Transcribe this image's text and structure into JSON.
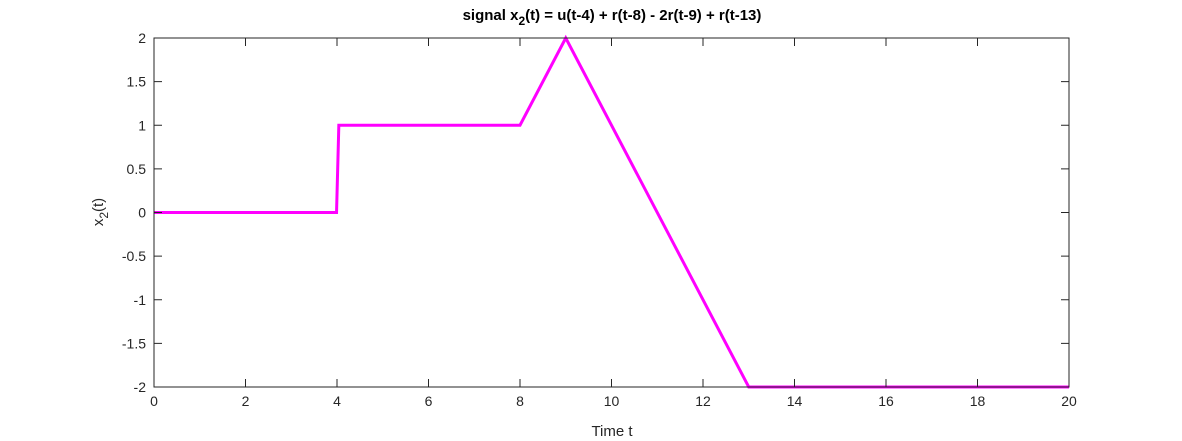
{
  "chart_data": {
    "type": "line",
    "title": {
      "prefix": "signal x",
      "subscript": "2",
      "suffix": "(t) = u(t-4) + r(t-8) - 2r(t-9) + r(t-13)"
    },
    "xlabel": "Time t",
    "ylabel": {
      "prefix": "x",
      "subscript": "2",
      "suffix": "(t)"
    },
    "xlim": [
      0,
      20
    ],
    "ylim": [
      -2,
      2
    ],
    "xticks": [
      0,
      2,
      4,
      6,
      8,
      10,
      12,
      14,
      16,
      18,
      20
    ],
    "yticks": [
      -2,
      -1.5,
      -1,
      -0.5,
      0,
      0.5,
      1,
      1.5,
      2
    ],
    "xtick_labels": [
      "0",
      "2",
      "4",
      "6",
      "8",
      "10",
      "12",
      "14",
      "16",
      "18",
      "20"
    ],
    "ytick_labels": [
      "-2",
      "-1.5",
      "-1",
      "-0.5",
      "0",
      "0.5",
      "1",
      "1.5",
      "2"
    ],
    "grid": false,
    "box": true,
    "series": [
      {
        "color": "#ff00ff",
        "x": [
          0,
          3.99,
          4.04,
          8,
          9,
          13,
          20
        ],
        "y": [
          0,
          0,
          1,
          1,
          2,
          -2,
          -2
        ]
      }
    ]
  }
}
